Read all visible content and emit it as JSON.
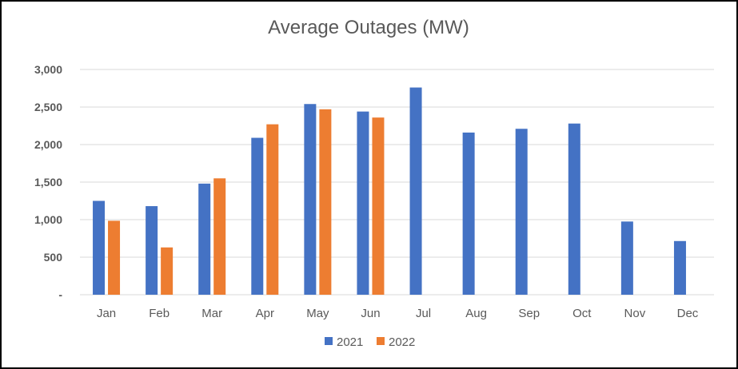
{
  "chart_data": {
    "type": "bar",
    "title": "Average Outages (MW)",
    "xlabel": "",
    "ylabel": "",
    "categories": [
      "Jan",
      "Feb",
      "Mar",
      "Apr",
      "May",
      "Jun",
      "Jul",
      "Aug",
      "Sep",
      "Oct",
      "Nov",
      "Dec"
    ],
    "series": [
      {
        "name": "2021",
        "color": "#4472C4",
        "values": [
          1250,
          1180,
          1480,
          2090,
          2540,
          2440,
          2760,
          2160,
          2210,
          2280,
          975,
          715
        ]
      },
      {
        "name": "2022",
        "color": "#ED7D31",
        "values": [
          985,
          630,
          1550,
          2270,
          2470,
          2360,
          null,
          null,
          null,
          null,
          null,
          null
        ]
      }
    ],
    "ylim": [
      0,
      3000
    ],
    "yticks": [
      0,
      500,
      1000,
      1500,
      2000,
      2500,
      3000
    ],
    "ytick_labels": [
      "-",
      "500",
      "1,000",
      "1,500",
      "2,000",
      "2,500",
      "3,000"
    ],
    "grid": true,
    "legend": "bottom-center"
  }
}
